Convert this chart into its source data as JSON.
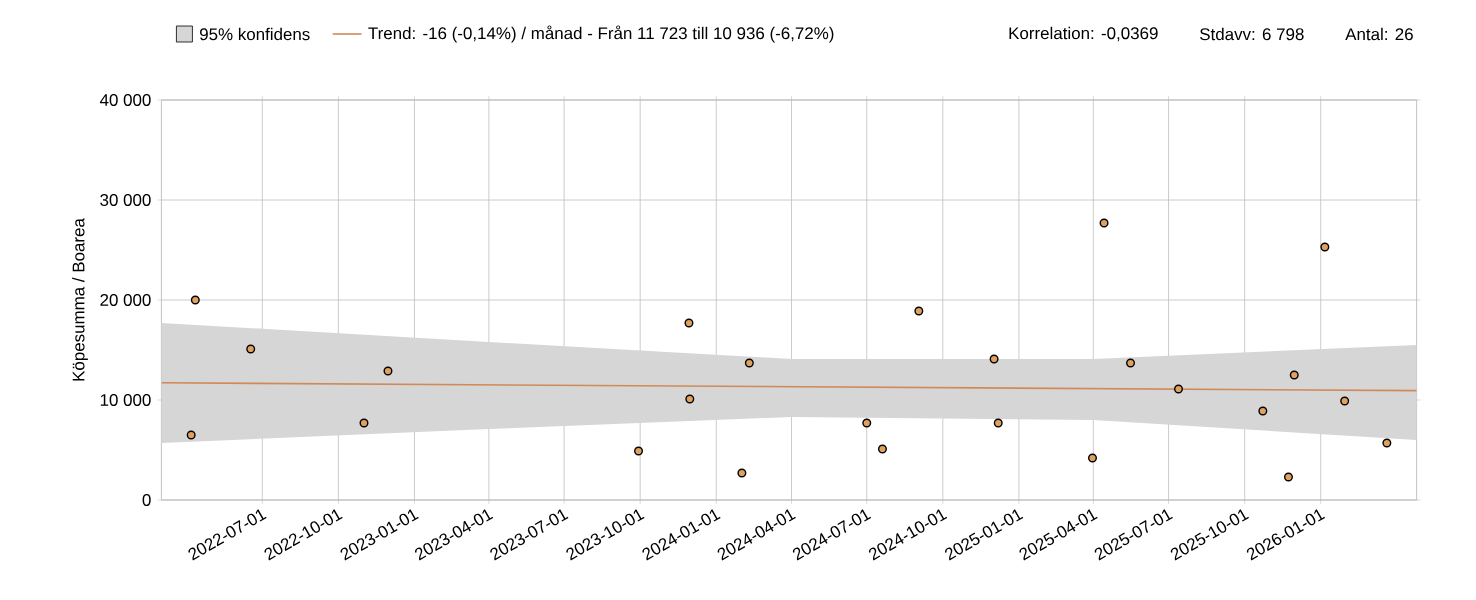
{
  "chart_data": {
    "type": "scatter",
    "ylabel": "Köpesumma / Boarea",
    "xlim": [
      "2022-03-01",
      "2026-04-27"
    ],
    "xticks": [
      {
        "value": "2022-07-01",
        "label": "2022-07-01"
      },
      {
        "value": "2022-10-01",
        "label": "2022-10-01"
      },
      {
        "value": "2023-01-01",
        "label": "2023-01-01"
      },
      {
        "value": "2023-04-01",
        "label": "2023-04-01"
      },
      {
        "value": "2023-07-01",
        "label": "2023-07-01"
      },
      {
        "value": "2023-10-01",
        "label": "2023-10-01"
      },
      {
        "value": "2024-01-01",
        "label": "2024-01-01"
      },
      {
        "value": "2024-04-01",
        "label": "2024-04-01"
      },
      {
        "value": "2024-07-01",
        "label": "2024-07-01"
      },
      {
        "value": "2024-10-01",
        "label": "2024-10-01"
      },
      {
        "value": "2025-01-01",
        "label": "2025-01-01"
      },
      {
        "value": "2025-04-01",
        "label": "2025-04-01"
      },
      {
        "value": "2025-07-01",
        "label": "2025-07-01"
      },
      {
        "value": "2025-10-01",
        "label": "2025-10-01"
      },
      {
        "value": "2026-01-01",
        "label": "2026-01-01"
      }
    ],
    "ylim": [
      0,
      40000
    ],
    "yticks": [
      0,
      {
        "value": 10000,
        "label": "10 000"
      },
      {
        "value": 20000,
        "label": "20 000"
      },
      {
        "value": 30000,
        "label": "30 000"
      },
      {
        "value": 40000,
        "label": "40 000"
      }
    ],
    "grid": true,
    "legend": "top",
    "series": [
      {
        "name": "95% konfidens",
        "type": "area",
        "color": "#d6d6d6",
        "x": [
          "2022-03-01",
          "2023-04-01",
          "2024-04-01",
          "2025-04-01",
          "2026-04-27"
        ],
        "values": [
          null,
          null,
          null,
          null,
          null
        ],
        "lower": [
          5700,
          7100,
          8300,
          8000,
          6000
        ],
        "upper": [
          17700,
          15800,
          14100,
          14100,
          15500
        ]
      },
      {
        "name": "Trend: -16 (-0,14%) / månad  -  Från 11 723 till 10 936 (-6,72%)",
        "type": "line",
        "marker": "none",
        "color": "#d08a58",
        "x": [
          "2022-03-01",
          "2026-04-27"
        ],
        "values": [
          11723,
          10936
        ]
      },
      {
        "marker": "circle",
        "color": "#e0a060",
        "x": [
          "2022-04-06",
          "2022-04-11",
          "2022-06-17",
          "2022-11-01",
          "2022-11-30",
          "2023-09-29",
          "2023-11-29",
          "2023-11-30",
          "2024-02-01",
          "2024-02-10",
          "2024-07-01",
          "2024-07-20",
          "2024-09-02",
          "2024-12-02",
          "2024-12-07",
          "2025-03-30",
          "2025-03-31",
          "2025-04-14",
          "2025-05-16",
          "2025-07-13",
          "2025-10-23",
          "2025-11-23",
          "2025-11-30",
          "2026-01-06",
          "2026-01-30",
          "2026-03-22"
        ],
        "values": [
          6500,
          20000,
          15100,
          7700,
          12900,
          4900,
          17700,
          10100,
          2700,
          13700,
          7700,
          5100,
          18900,
          14100,
          7700,
          null,
          4200,
          27700,
          13700,
          11100,
          8900,
          2300,
          12500,
          25300,
          9900,
          5700
        ]
      }
    ],
    "annotations": [
      "Korrelation: -0,0369",
      "Stdavv: 6 798",
      "Antal: 26"
    ]
  }
}
